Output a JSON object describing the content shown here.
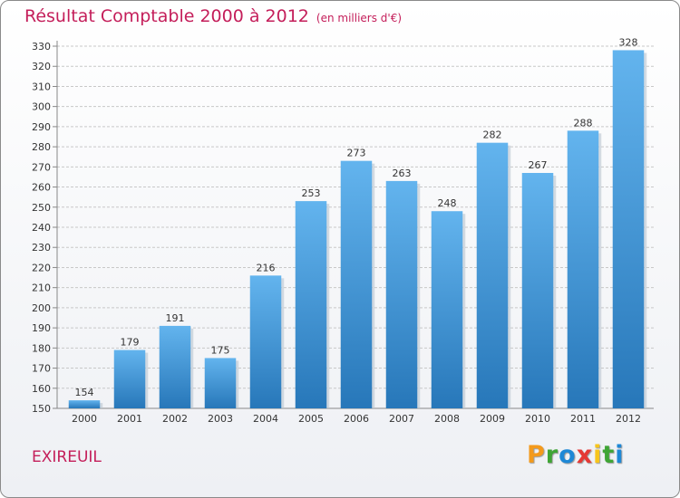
{
  "chart_data": {
    "type": "bar",
    "title": "Résultat Comptable 2000 à 2012",
    "subtitle": "(en milliers d'€)",
    "categories": [
      "2000",
      "2001",
      "2002",
      "2003",
      "2004",
      "2005",
      "2006",
      "2007",
      "2008",
      "2009",
      "2010",
      "2011",
      "2012"
    ],
    "values": [
      154,
      179,
      191,
      175,
      216,
      253,
      273,
      263,
      248,
      282,
      267,
      288,
      328
    ],
    "ylim": [
      150,
      330
    ],
    "ytick_step": 10,
    "xlabel": "",
    "ylabel": "",
    "grid": true,
    "legend": "none"
  },
  "footer": {
    "place": "EXIREUIL"
  },
  "logo": {
    "letters": [
      "P",
      "r",
      "o",
      "x",
      "i",
      "t",
      "i"
    ],
    "colors": [
      "#f39a1c",
      "#3fa535",
      "#1e88d6",
      "#e53935",
      "#f7c51b",
      "#3fa535",
      "#1e88d6"
    ]
  },
  "colors": {
    "bar": "#3d8fd6",
    "bar_light": "#63b4ee",
    "bar_dark": "#2777b9",
    "grid": "#c8c8c8",
    "axis_text": "#333333",
    "title": "#c41e5a"
  }
}
